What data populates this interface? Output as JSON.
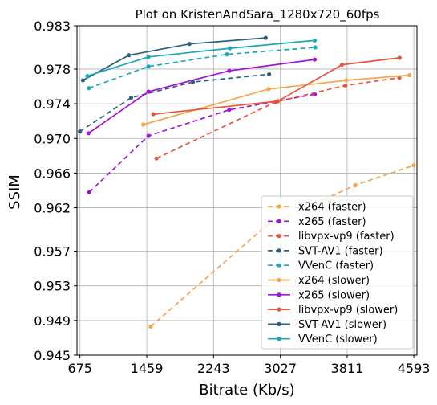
{
  "chart_data": {
    "type": "line",
    "title": "Plot on KristenAndSara_1280x720_60fps",
    "xlabel": "Bitrate (Kb/s)",
    "ylabel": "SSIM",
    "xlim": [
      640,
      4630
    ],
    "ylim": [
      0.945,
      0.983
    ],
    "xticks": [
      675,
      1459,
      2243,
      3027,
      3811,
      4593
    ],
    "xtick_labels": [
      "675",
      "1459",
      "2243",
      "3027",
      "3811",
      "4593"
    ],
    "yticks": [
      0.945,
      0.949,
      0.953,
      0.957,
      0.962,
      0.966,
      0.97,
      0.974,
      0.978,
      0.983
    ],
    "ytick_labels": [
      "0.945",
      "0.949",
      "0.953",
      "0.957",
      "0.962",
      "0.966",
      "0.970",
      "0.974",
      "0.978",
      "0.983"
    ],
    "grid": true,
    "legend_position": "bottom-right",
    "series": [
      {
        "name": "x264 (faster)",
        "color": "#f4a64a",
        "dash": true,
        "x": [
          1505,
          2858,
          3905,
          4593
        ],
        "y": [
          0.9483,
          0.9599,
          0.9646,
          0.9669
        ]
      },
      {
        "name": "x265 (faster)",
        "color": "#a213d6",
        "dash": true,
        "x": [
          783,
          1479,
          2427,
          3430
        ],
        "y": [
          0.9638,
          0.9703,
          0.9733,
          0.9751
        ]
      },
      {
        "name": "libvpx-vp9 (faster)",
        "color": "#e8553c",
        "dash": true,
        "x": [
          1573,
          2970,
          3790,
          4423
        ],
        "y": [
          0.9677,
          0.9742,
          0.9761,
          0.977
        ]
      },
      {
        "name": "SVT-AV1 (faster)",
        "color": "#2f5f80",
        "dash": true,
        "x": [
          675,
          1275,
          2000,
          2895
        ],
        "y": [
          0.9708,
          0.9747,
          0.9765,
          0.9774
        ]
      },
      {
        "name": "VVenC (faster)",
        "color": "#1aa8b4",
        "dash": true,
        "x": [
          780,
          1479,
          2400,
          3436
        ],
        "y": [
          0.9758,
          0.9783,
          0.9797,
          0.9805
        ]
      },
      {
        "name": "x264 (slower)",
        "color": "#f4a64a",
        "dash": false,
        "x": [
          1419,
          2890,
          3800,
          4542
        ],
        "y": [
          0.9716,
          0.9757,
          0.9767,
          0.9773
        ]
      },
      {
        "name": "x265 (slower)",
        "color": "#a213d6",
        "dash": false,
        "x": [
          775,
          1479,
          2427,
          3430
        ],
        "y": [
          0.9706,
          0.9754,
          0.9778,
          0.9791
        ]
      },
      {
        "name": "libvpx-vp9 (slower)",
        "color": "#e8553c",
        "dash": false,
        "x": [
          1536,
          2997,
          3750,
          4426
        ],
        "y": [
          0.9728,
          0.9743,
          0.9785,
          0.9793
        ]
      },
      {
        "name": "SVT-AV1 (slower)",
        "color": "#2f5f80",
        "dash": false,
        "x": [
          710,
          1250,
          1960,
          2855
        ],
        "y": [
          0.9767,
          0.9796,
          0.9809,
          0.9816
        ]
      },
      {
        "name": "VVenC (slower)",
        "color": "#1aa8b4",
        "dash": false,
        "x": [
          762,
          1479,
          2433,
          3430
        ],
        "y": [
          0.9772,
          0.9794,
          0.9804,
          0.9813
        ]
      }
    ]
  }
}
